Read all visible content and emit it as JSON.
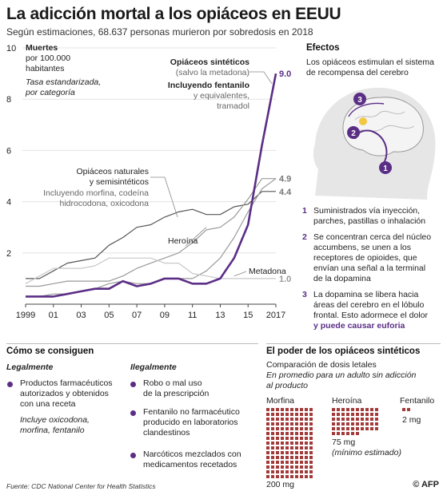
{
  "header": {
    "title": "La adicción mortal a los opiáceos en EEUU",
    "subtitle": "Según estimaciones, 68.637 personas murieron por sobredosis en 2018"
  },
  "chart_data": {
    "type": "line",
    "ylabel_lines": [
      "Muertes",
      "por 100.000",
      "habitantes"
    ],
    "note_lines": [
      "Tasa estandarizada,",
      "por categoría"
    ],
    "ylim": [
      0,
      10
    ],
    "yticks": [
      2,
      4,
      6,
      8,
      10
    ],
    "x": [
      1999,
      2000,
      2001,
      2002,
      2003,
      2004,
      2005,
      2006,
      2007,
      2008,
      2009,
      2010,
      2011,
      2012,
      2013,
      2014,
      2015,
      2016,
      2017
    ],
    "xtick_labels": [
      "1999",
      "01",
      "03",
      "05",
      "07",
      "09",
      "11",
      "13",
      "15",
      "2017"
    ],
    "xtick_years": [
      1999,
      2001,
      2003,
      2005,
      2007,
      2009,
      2011,
      2013,
      2015,
      2017
    ],
    "series": [
      {
        "name": "Opiáceos naturales y semisintéticos",
        "color": "#555555",
        "width": 1.2,
        "values": [
          1.0,
          1.0,
          1.3,
          1.6,
          1.7,
          1.8,
          2.3,
          2.6,
          3.0,
          3.1,
          3.4,
          3.6,
          3.7,
          3.5,
          3.5,
          3.8,
          3.9,
          4.4,
          4.4
        ]
      },
      {
        "name": "Opiáceos sintéticos",
        "color": "#999999",
        "width": 1.2,
        "values": [
          0.3,
          0.3,
          0.4,
          0.4,
          0.5,
          0.6,
          0.8,
          0.9,
          0.8,
          0.8,
          1.0,
          1.0,
          1.0,
          1.3,
          1.8,
          2.6,
          3.6,
          4.5,
          4.9
        ]
      },
      {
        "name": "Heroína",
        "color": "#999999",
        "width": 1.2,
        "values": [
          0.7,
          0.7,
          0.8,
          0.9,
          0.9,
          0.9,
          0.9,
          1.1,
          1.4,
          1.6,
          1.8,
          2.0,
          2.4,
          2.9,
          3.0,
          3.4,
          4.1,
          4.9,
          4.9
        ]
      },
      {
        "name": "Metadona",
        "color": "#c8c8c8",
        "width": 1.2,
        "values": [
          0.8,
          1.1,
          1.4,
          1.4,
          1.4,
          1.5,
          1.8,
          1.8,
          1.8,
          1.8,
          1.6,
          1.6,
          1.2,
          1.1,
          1.0,
          1.0,
          1.0,
          1.0,
          1.0
        ]
      },
      {
        "name": "Incluyendo fentanilo",
        "color": "#5b2e86",
        "width": 2.6,
        "values": [
          0.3,
          0.3,
          0.3,
          0.4,
          0.5,
          0.6,
          0.6,
          0.9,
          0.7,
          0.8,
          1.0,
          1.0,
          0.8,
          0.8,
          1.0,
          1.8,
          3.1,
          6.2,
          9.0
        ]
      }
    ],
    "end_labels": [
      "9.0",
      "4.9",
      "4.4",
      "1.0"
    ]
  },
  "chart_labels": {
    "sint_title": "Opiáceos sintéticos",
    "sint_sub": "(salvo la metadona)",
    "fent_title": "Incluyendo fentanilo",
    "fent_sub1": "y equivalentes,",
    "fent_sub2": "tramadol",
    "nat_title1": "Opiáceos naturales",
    "nat_title2": "y semisintéticos",
    "nat_sub1": "Incluyendo morfina, codeína",
    "nat_sub2": "hidrocodona, oxicodona",
    "heroina": "Heroína",
    "metadona": "Metadona"
  },
  "efectos": {
    "title": "Efectos",
    "desc1": "Los opiáceos estimulan el sistema",
    "desc2": "de recompensa del cerebro",
    "markers": [
      "1",
      "2",
      "3"
    ],
    "steps": [
      {
        "num": "1",
        "lines": [
          "Suministrados vía inyección,",
          "parches, pastillas o inhalación"
        ]
      },
      {
        "num": "2",
        "lines": [
          "Se concentran cerca del núcleo",
          "accumbens, se unen a los",
          "receptores de opioides, que",
          "envían una señal a la terminal",
          "de la dopamina"
        ]
      },
      {
        "num": "3",
        "lines": [
          "La dopamina se libera hacia",
          "áreas del cerebro en el lóbulo",
          "frontal. Esto adormece el dolor",
          "y puede causar euforia"
        ]
      }
    ]
  },
  "como": {
    "title": "Cómo se consiguen",
    "legal_title": "Legalmente",
    "legal_lines": [
      "Productos farmacéuticos",
      "autorizados y obtenidos",
      "con una receta"
    ],
    "legal_note": [
      "Incluye oxicodona,",
      "morfina, fentanilo"
    ],
    "ilegal_title": "Ilegalmente",
    "ilegal_items": [
      [
        "Robo o mal uso",
        "de la prescripción"
      ],
      [
        "Fentanilo no farmacéutico",
        "producido en laboratorios",
        "clandestinos"
      ],
      [
        "Narcóticos mezclados con",
        "medicamentos recetados"
      ]
    ]
  },
  "poder": {
    "title": "El poder de los opiáceos sintéticos",
    "sub": "Comparación de dosis letales",
    "note1": "En promedio para un adulto sin adicción",
    "note2": "al producto",
    "dot_color": "#a33a3a",
    "morfina": {
      "label": "Morfina",
      "dose": "200 mg",
      "mg": 200
    },
    "heroina": {
      "label": "Heroína",
      "dose": "75 mg",
      "note": "(mínimo estimado)",
      "mg": 75
    },
    "fentanilo": {
      "label": "Fentanilo",
      "dose": "2 mg",
      "mg": 2
    }
  },
  "footer": {
    "source": "Fuente: CDC National Center for Health Statistics",
    "credit": "© AFP"
  }
}
